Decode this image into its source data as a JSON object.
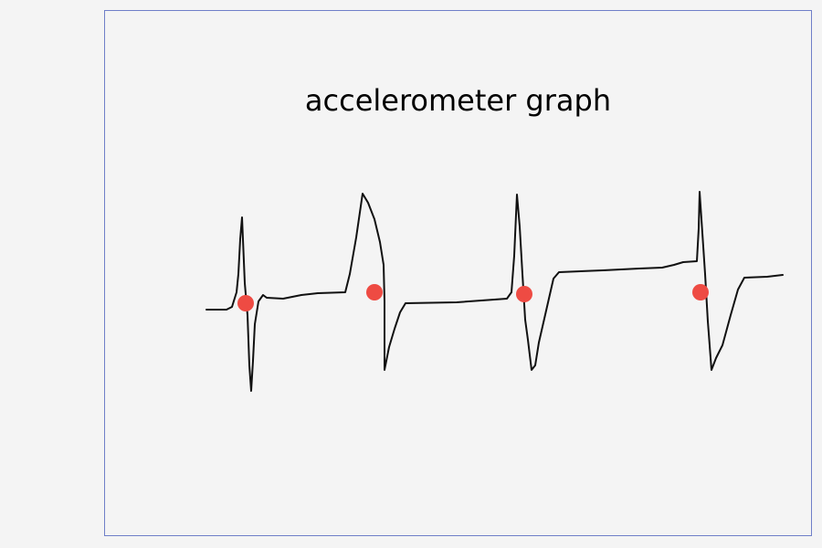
{
  "title": "accelerometer graph",
  "colors": {
    "background": "#f4f4f4",
    "frame": "#6f7fc8",
    "signal": "#111111",
    "marker": "#ee4b43"
  },
  "chart_data": {
    "type": "line",
    "title": "accelerometer graph",
    "series": [
      {
        "values_note": "hand-drawn waveform with 4 spikes, each marked by a red dot at the zero-crossing"
      }
    ],
    "markers": 4
  }
}
